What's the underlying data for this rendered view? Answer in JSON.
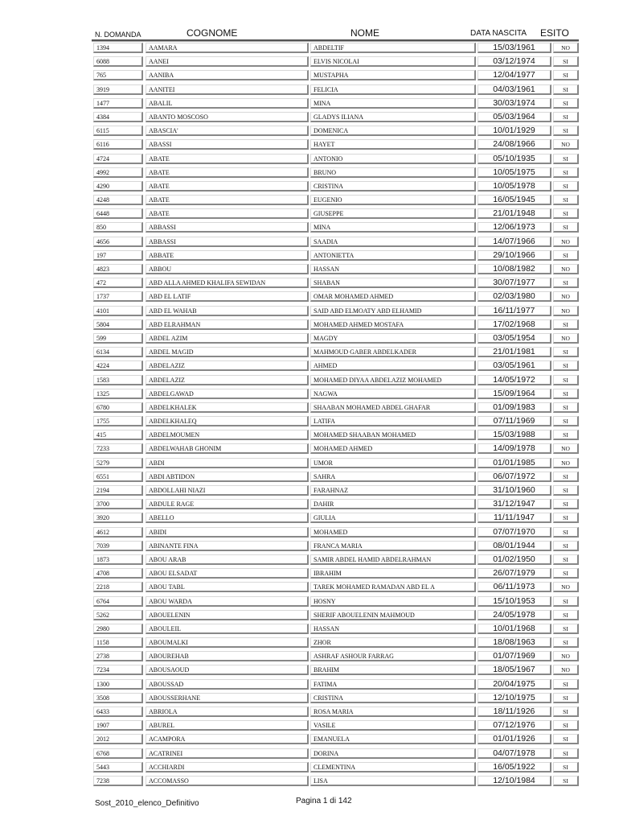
{
  "header": {
    "n_domanda": "N. DOMANDA",
    "cognome": "COGNOME",
    "nome": "NOME",
    "data_nascita": "DATA NASCITA",
    "esito": "ESITO"
  },
  "rows": [
    [
      "1394",
      "AAMARA",
      "ABDELTIF",
      "15/03/1961",
      "NO"
    ],
    [
      "6088",
      "AANEI",
      "ELVIS NICOLAI",
      "03/12/1974",
      "SI"
    ],
    [
      "765",
      "AANIBA",
      "MUSTAPHA",
      "12/04/1977",
      "SI"
    ],
    [
      "3919",
      "AANITEI",
      "FELICIA",
      "04/03/1961",
      "SI"
    ],
    [
      "1477",
      "ABALIL",
      "MINA",
      "30/03/1974",
      "SI"
    ],
    [
      "4384",
      "ABANTO MOSCOSO",
      "GLADYS ILIANA",
      "05/03/1964",
      "SI"
    ],
    [
      "6115",
      "ABASCIA'",
      "DOMENICA",
      "10/01/1929",
      "SI"
    ],
    [
      "6116",
      "ABASSI",
      "HAYET",
      "24/08/1966",
      "NO"
    ],
    [
      "4724",
      "ABATE",
      "ANTONIO",
      "05/10/1935",
      "SI"
    ],
    [
      "4992",
      "ABATE",
      "BRUNO",
      "10/05/1975",
      "SI"
    ],
    [
      "4290",
      "ABATE",
      "CRISTINA",
      "10/05/1978",
      "SI"
    ],
    [
      "4248",
      "ABATE",
      "EUGENIO",
      "16/05/1945",
      "SI"
    ],
    [
      "6448",
      "ABATE",
      "GIUSEPPE",
      "21/01/1948",
      "SI"
    ],
    [
      "850",
      "ABBASSI",
      "MINA",
      "12/06/1973",
      "SI"
    ],
    [
      "4656",
      "ABBASSI",
      "SAADIA",
      "14/07/1966",
      "NO"
    ],
    [
      "197",
      "ABBATE",
      "ANTONIETTA",
      "29/10/1966",
      "SI"
    ],
    [
      "4823",
      "ABBOU",
      "HASSAN",
      "10/08/1982",
      "NO"
    ],
    [
      "472",
      "ABD ALLA AHMED KHALIFA SEWIDAN",
      "SHABAN",
      "30/07/1977",
      "SI"
    ],
    [
      "1737",
      "ABD EL LATIF",
      "OMAR MOHAMED AHMED",
      "02/03/1980",
      "NO"
    ],
    [
      "4101",
      "ABD EL WAHAB",
      "SAID ABD ELMOATY ABD ELHAMID",
      "16/11/1977",
      "NO"
    ],
    [
      "5804",
      "ABD ELRAHMAN",
      "MOHAMED AHMED MOSTAFA",
      "17/02/1968",
      "SI"
    ],
    [
      "599",
      "ABDEL AZIM",
      "MAGDY",
      "03/05/1954",
      "NO"
    ],
    [
      "6134",
      "ABDEL MAGID",
      "MAHMOUD GABER ABDELKADER",
      "21/01/1981",
      "SI"
    ],
    [
      "4224",
      "ABDELAZIZ",
      "AHMED",
      "03/05/1961",
      "SI"
    ],
    [
      "1583",
      "ABDELAZIZ",
      "MOHAMED DIYAA ABDELAZIZ MOHAMED",
      "14/05/1972",
      "SI"
    ],
    [
      "1325",
      "ABDELGAWAD",
      "NAGWA",
      "15/09/1964",
      "SI"
    ],
    [
      "6780",
      "ABDELKHALEK",
      "SHAABAN MOHAMED ABDEL GHAFAR",
      "01/09/1983",
      "SI"
    ],
    [
      "1755",
      "ABDELKHALEQ",
      "LATIFA",
      "07/11/1969",
      "SI"
    ],
    [
      "415",
      "ABDELMOUMEN",
      "MOHAMED SHAABAN MOHAMED",
      "15/03/1988",
      "SI"
    ],
    [
      "7233",
      "ABDELWAHAB GHONIM",
      "MOHAMED AHMED",
      "14/09/1978",
      "NO"
    ],
    [
      "5279",
      "ABDI",
      "UMOR",
      "01/01/1985",
      "NO"
    ],
    [
      "6551",
      "ABDI ABTIDON",
      "SAHRA",
      "06/07/1972",
      "SI"
    ],
    [
      "2194",
      "ABDOLLAHI NIAZI",
      "FARAHNAZ",
      "31/10/1960",
      "SI"
    ],
    [
      "3700",
      "ABDULE RAGE",
      "DAHIR",
      "31/12/1947",
      "SI"
    ],
    [
      "3920",
      "ABELLO",
      "GIULIA",
      "11/11/1947",
      "SI"
    ],
    [
      "4612",
      "ABIDI",
      "MOHAMED",
      "07/07/1970",
      "SI"
    ],
    [
      "7039",
      "ABINANTE FINA",
      "FRANCA MARIA",
      "08/01/1944",
      "SI"
    ],
    [
      "1873",
      "ABOU ARAB",
      "SAMIR ABDEL HAMID ABDELRAHMAN",
      "01/02/1950",
      "SI"
    ],
    [
      "4708",
      "ABOU ELSADAT",
      "IBRAHIM",
      "26/07/1979",
      "SI"
    ],
    [
      "2218",
      "ABOU TABL",
      "TAREK MOHAMED RAMADAN ABD EL A",
      "06/11/1973",
      "NO"
    ],
    [
      "6764",
      "ABOU WARDA",
      "HOSNY",
      "15/10/1953",
      "SI"
    ],
    [
      "5262",
      "ABOUELENIN",
      "SHERIF ABOUELENIN MAHMOUD",
      "24/05/1978",
      "SI"
    ],
    [
      "2980",
      "ABOULEIL",
      "HASSAN",
      "10/01/1968",
      "SI"
    ],
    [
      "1158",
      "ABOUMALKI",
      "ZHOR",
      "18/08/1963",
      "SI"
    ],
    [
      "2738",
      "ABOUREHAB",
      "ASHRAF ASHOUR FARRAG",
      "01/07/1969",
      "NO"
    ],
    [
      "7234",
      "ABOUSAOUD",
      "BRAHIM",
      "18/05/1967",
      "NO"
    ],
    [
      "1300",
      "ABOUSSAD",
      "FATIMA",
      "20/04/1975",
      "SI"
    ],
    [
      "3508",
      "ABOUSSERHANE",
      "CRISTINA",
      "12/10/1975",
      "SI"
    ],
    [
      "6433",
      "ABRIOLA",
      "ROSA MARIA",
      "18/11/1926",
      "SI"
    ],
    [
      "1907",
      "ABUREL",
      "VASILE",
      "07/12/1976",
      "SI"
    ],
    [
      "2012",
      "ACAMPORA",
      "EMANUELA",
      "01/01/1926",
      "SI"
    ],
    [
      "6768",
      "ACATRINEI",
      "DORINA",
      "04/07/1978",
      "SI"
    ],
    [
      "5443",
      "ACCHIARDI",
      "CLEMENTINA",
      "16/05/1922",
      "SI"
    ],
    [
      "7238",
      "ACCOMASSO",
      "LISA",
      "12/10/1984",
      "SI"
    ]
  ],
  "footer": {
    "document_name": "Sost_2010_elenco_Definitivo",
    "page": "Pagina 1 di 142"
  }
}
